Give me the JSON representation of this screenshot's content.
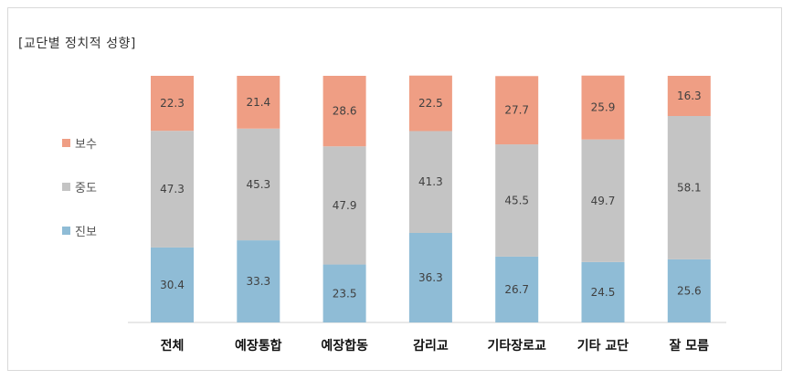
{
  "title": "[교단별 정치적 성향]",
  "colors": {
    "진보": "#8fbcd6",
    "중도": "#c4c4c4",
    "보수": "#ef9e84"
  },
  "legend": [
    {
      "label": "보수",
      "color": "#ef9e84"
    },
    {
      "label": "중도",
      "color": "#c4c4c4"
    },
    {
      "label": "진보",
      "color": "#8fbcd6"
    }
  ],
  "chart_data": {
    "type": "bar",
    "stacked": true,
    "title": "[교단별 정치적 성향]",
    "categories": [
      "전체",
      "예장통합",
      "예장합동",
      "감리교",
      "기타장로교",
      "기타 교단",
      "잘 모름"
    ],
    "series": [
      {
        "name": "진보",
        "values": [
          30.4,
          33.3,
          23.5,
          36.3,
          26.7,
          24.5,
          25.6
        ]
      },
      {
        "name": "중도",
        "values": [
          47.3,
          45.3,
          47.9,
          41.3,
          45.5,
          49.7,
          58.1
        ]
      },
      {
        "name": "보수",
        "values": [
          22.3,
          21.4,
          28.6,
          22.5,
          27.7,
          25.9,
          16.3
        ]
      }
    ],
    "ylim": [
      0,
      100
    ],
    "legend_position": "left",
    "grid": false
  }
}
